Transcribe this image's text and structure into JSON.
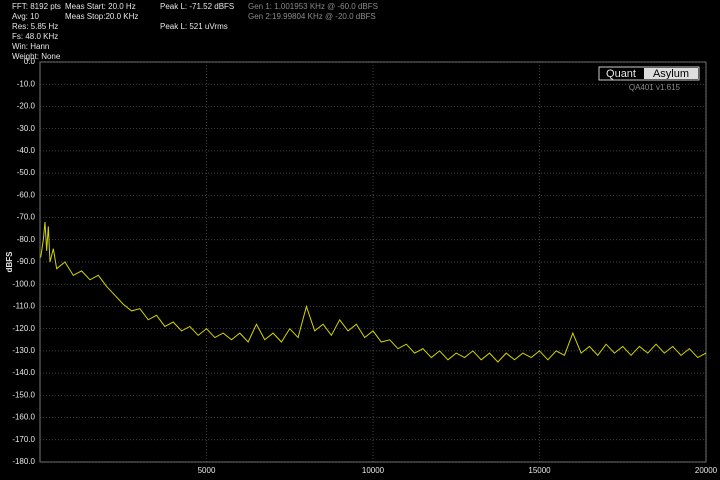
{
  "chart_data": {
    "type": "line",
    "info_lines": [
      "FFT: 8192 pts",
      "Avg: 10",
      "Res: 5.85 Hz",
      "Fs: 48.0 KHz",
      "Win: Hann",
      "Weight: None"
    ],
    "meas_lines": [
      "Meas Start: 20.0 Hz",
      "Meas Stop:20.0 KHz"
    ],
    "peak_lines": [
      "Peak L: -71.52 dBFS",
      "Peak L: 521 uVrms"
    ],
    "gen_lines": [
      "Gen 1: 1.001953 KHz @ -60.0  dBFS",
      "Gen 2:19.99804 KHz @ -20.0  dBFS"
    ],
    "logo": [
      "Quant",
      "Asylum"
    ],
    "version": "QA401 v1.615",
    "y_label": "dBFS",
    "color": "#d4d400",
    "grid": true,
    "xlim": [
      0,
      20000
    ],
    "xticks": [
      5000,
      10000,
      15000,
      20000
    ],
    "ylim": [
      -180,
      0
    ],
    "yticks": [
      {
        "value": 0,
        "label": "0.0"
      },
      {
        "value": -10,
        "label": "-10.0"
      },
      {
        "value": -20,
        "label": "-20.0"
      },
      {
        "value": -30,
        "label": "-30.0"
      },
      {
        "value": -40,
        "label": "-40.0"
      },
      {
        "value": -50,
        "label": "-50.0"
      },
      {
        "value": -60,
        "label": "-60.0"
      },
      {
        "value": -70,
        "label": "-70.0"
      },
      {
        "value": -80,
        "label": "-80.0"
      },
      {
        "value": -90,
        "label": "-90.0"
      },
      {
        "value": -100,
        "label": "-100.0"
      },
      {
        "value": -110,
        "label": "-110.0"
      },
      {
        "value": -120,
        "label": "-120.0"
      },
      {
        "value": -130,
        "label": "-130.0"
      },
      {
        "value": -140,
        "label": "-140.0"
      },
      {
        "value": -150,
        "label": "-150.0"
      },
      {
        "value": -160,
        "label": "-160.0"
      },
      {
        "value": -170,
        "label": "-170.0"
      },
      {
        "value": -180,
        "label": "-180.0"
      }
    ],
    "x": [
      20,
      100,
      150,
      200,
      250,
      300,
      400,
      500,
      750,
      1000,
      1250,
      1500,
      1750,
      2000,
      2250,
      2500,
      2750,
      3000,
      3250,
      3500,
      3750,
      4000,
      4250,
      4500,
      4750,
      5000,
      5250,
      5500,
      5750,
      6000,
      6250,
      6500,
      6750,
      7000,
      7250,
      7500,
      7750,
      8000,
      8250,
      8500,
      8750,
      9000,
      9250,
      9500,
      9750,
      10000,
      10250,
      10500,
      10750,
      11000,
      11250,
      11500,
      11750,
      12000,
      12250,
      12500,
      12750,
      13000,
      13250,
      13500,
      13750,
      14000,
      14250,
      14500,
      14750,
      15000,
      15250,
      15500,
      15750,
      16000,
      16250,
      16500,
      16750,
      17000,
      17250,
      17500,
      17750,
      18000,
      18250,
      18500,
      18750,
      19000,
      19250,
      19500,
      19750,
      20000
    ],
    "values": [
      -88,
      -80,
      -72,
      -85,
      -74,
      -90,
      -84,
      -93,
      -90,
      -96,
      -94,
      -98,
      -96,
      -101,
      -105,
      -109,
      -112,
      -111,
      -116,
      -114,
      -119,
      -117,
      -121,
      -119,
      -123,
      -120,
      -124,
      -122,
      -125,
      -122,
      -126,
      -118,
      -125,
      -122,
      -126,
      -120,
      -124,
      -110,
      -121,
      -118,
      -123,
      -116,
      -121,
      -118,
      -124,
      -121,
      -126,
      -125,
      -129,
      -127,
      -131,
      -129,
      -133,
      -130,
      -134,
      -131,
      -133,
      -130,
      -134,
      -131,
      -135,
      -131,
      -134,
      -131,
      -133,
      -130,
      -134,
      -130,
      -132,
      -122,
      -131,
      -128,
      -132,
      -127,
      -131,
      -128,
      -132,
      -128,
      -131,
      -127,
      -131,
      -128,
      -132,
      -129,
      -133,
      -131
    ]
  }
}
